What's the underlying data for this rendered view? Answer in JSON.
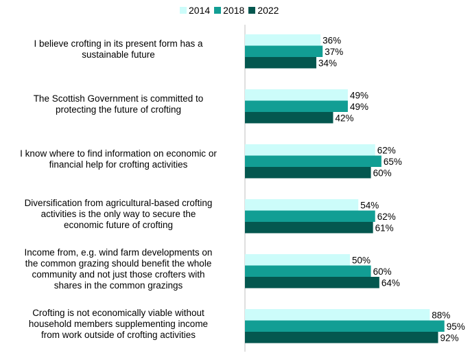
{
  "chart_data": {
    "type": "bar",
    "orientation": "horizontal",
    "title": "",
    "xlabel": "",
    "ylabel": "",
    "xlim": [
      0,
      100
    ],
    "grid": false,
    "legend": "top",
    "categories": [
      [
        "I believe crofting in its present form has a",
        "sustainable future"
      ],
      [
        "The Scottish Government is committed to",
        "protecting the future of crofting"
      ],
      [
        "I know where to find information on economic or",
        "financial help for crofting activities"
      ],
      [
        "Diversification from agricultural-based crofting",
        "activities is the only way to secure the",
        "economic future of crofting"
      ],
      [
        "Income from, e.g. wind farm developments on",
        "the common grazing should benefit the whole",
        "community and not just those crofters with",
        "shares in the common grazings"
      ],
      [
        "Crofting is not economically viable without",
        "household members supplementing income",
        "from work outside of crofting activities"
      ]
    ],
    "series": [
      {
        "name": "2014",
        "color": "#ccfcfa",
        "values": [
          36,
          49,
          62,
          54,
          50,
          88
        ],
        "labels": [
          "36%",
          "49%",
          "62%",
          "54%",
          "50%",
          "88%"
        ]
      },
      {
        "name": "2018",
        "color": "#129e94",
        "values": [
          37,
          49,
          65,
          62,
          60,
          95
        ],
        "labels": [
          "37%",
          "49%",
          "65%",
          "62%",
          "60%",
          "95%"
        ]
      },
      {
        "name": "2022",
        "color": "#04574f",
        "values": [
          34,
          42,
          60,
          61,
          64,
          92
        ],
        "labels": [
          "34%",
          "42%",
          "60%",
          "61%",
          "64%",
          "92%"
        ]
      }
    ]
  }
}
